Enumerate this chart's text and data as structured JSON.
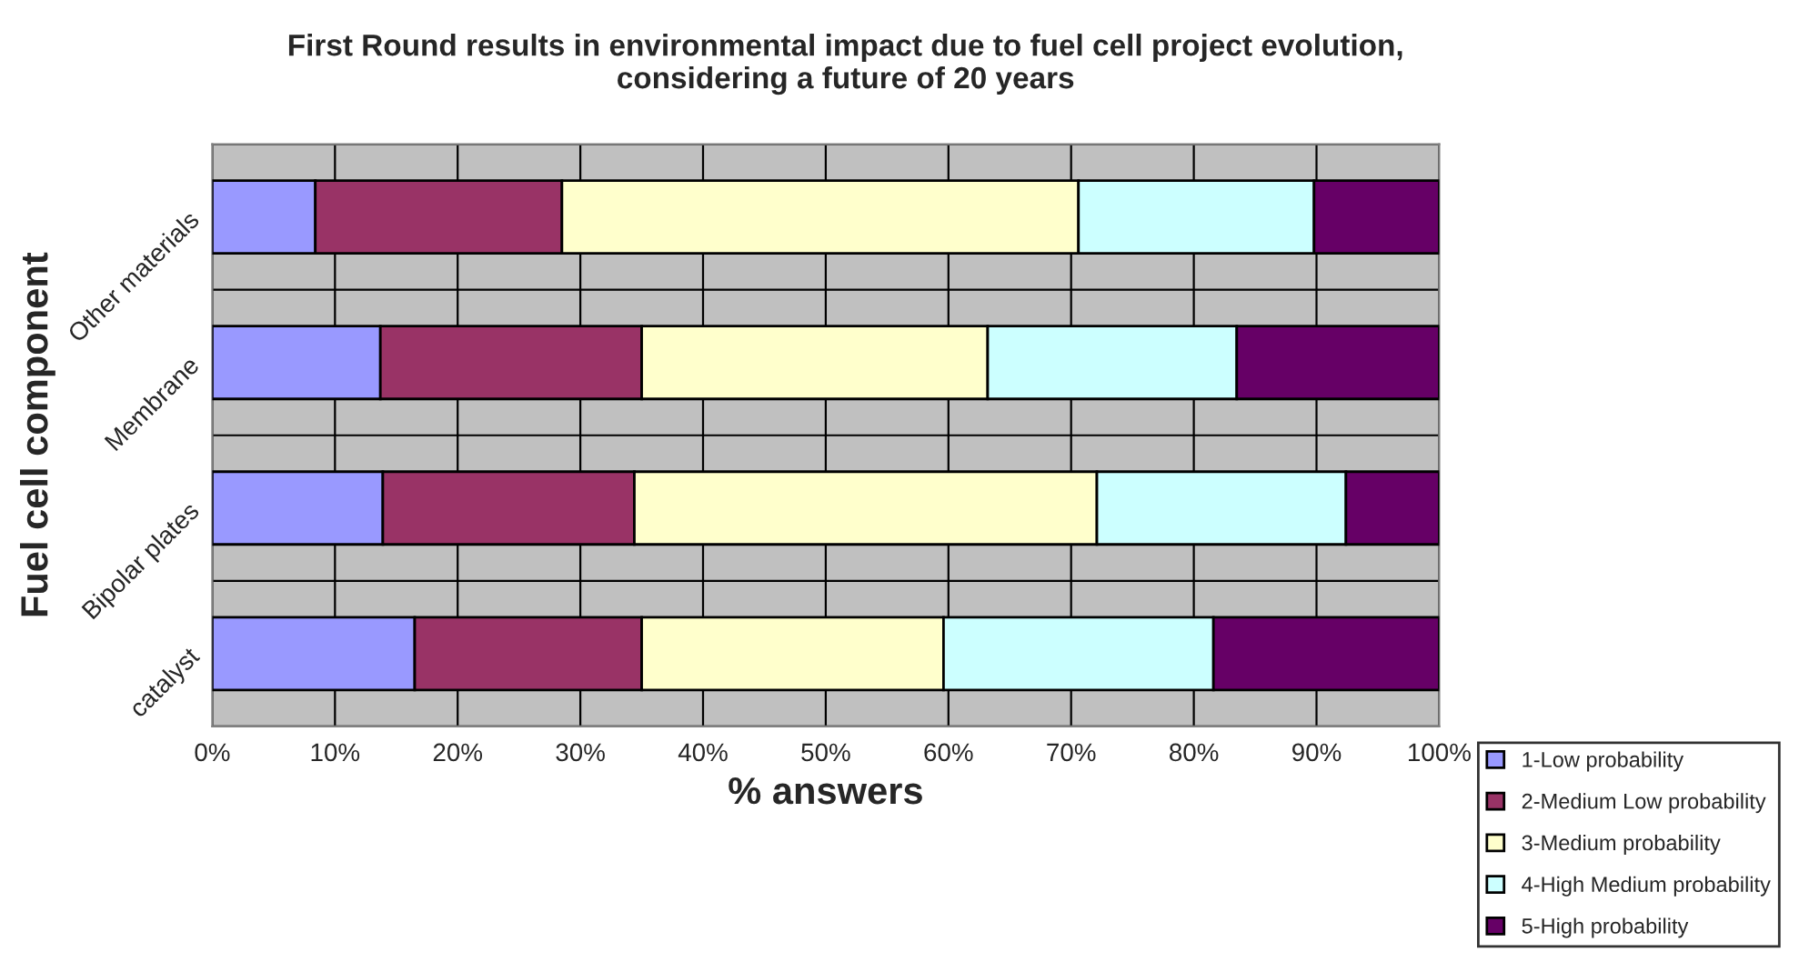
{
  "chart_data": {
    "type": "bar",
    "orientation": "horizontal",
    "stacked": true,
    "title": "First Round results in environmental impact due to fuel cell project evolution,\nconsidering a future of 20 years",
    "xlabel": "% answers",
    "ylabel": "Fuel cell component",
    "categories": [
      "Other materials",
      "Membrane",
      "Bipolar plates",
      "catalyst"
    ],
    "series": [
      {
        "name": "1-Low probability",
        "color": "#9999ff",
        "values": [
          8.4,
          13.7,
          13.9,
          16.5
        ]
      },
      {
        "name": "2-Medium Low probability",
        "color": "#993366",
        "values": [
          20.1,
          21.3,
          20.5,
          18.5
        ]
      },
      {
        "name": "3-Medium probability",
        "color": "#ffffcc",
        "values": [
          42.1,
          28.2,
          37.7,
          24.6
        ]
      },
      {
        "name": "4-High Medium probability",
        "color": "#ccffff",
        "values": [
          19.2,
          20.3,
          20.3,
          22.0
        ]
      },
      {
        "name": "5-High probability",
        "color": "#660066",
        "values": [
          10.2,
          16.5,
          7.6,
          18.4
        ]
      }
    ],
    "xlim": [
      0,
      100
    ],
    "xticks": [
      {
        "value": 0,
        "label": "0%"
      },
      {
        "value": 10,
        "label": "10%"
      },
      {
        "value": 20,
        "label": "20%"
      },
      {
        "value": 30,
        "label": "30%"
      },
      {
        "value": 40,
        "label": "40%"
      },
      {
        "value": 50,
        "label": "50%"
      },
      {
        "value": 60,
        "label": "60%"
      },
      {
        "value": 70,
        "label": "70%"
      },
      {
        "value": 80,
        "label": "80%"
      },
      {
        "value": 90,
        "label": "90%"
      },
      {
        "value": 100,
        "label": "100%"
      }
    ],
    "grid": true,
    "legend": "bottom right"
  }
}
